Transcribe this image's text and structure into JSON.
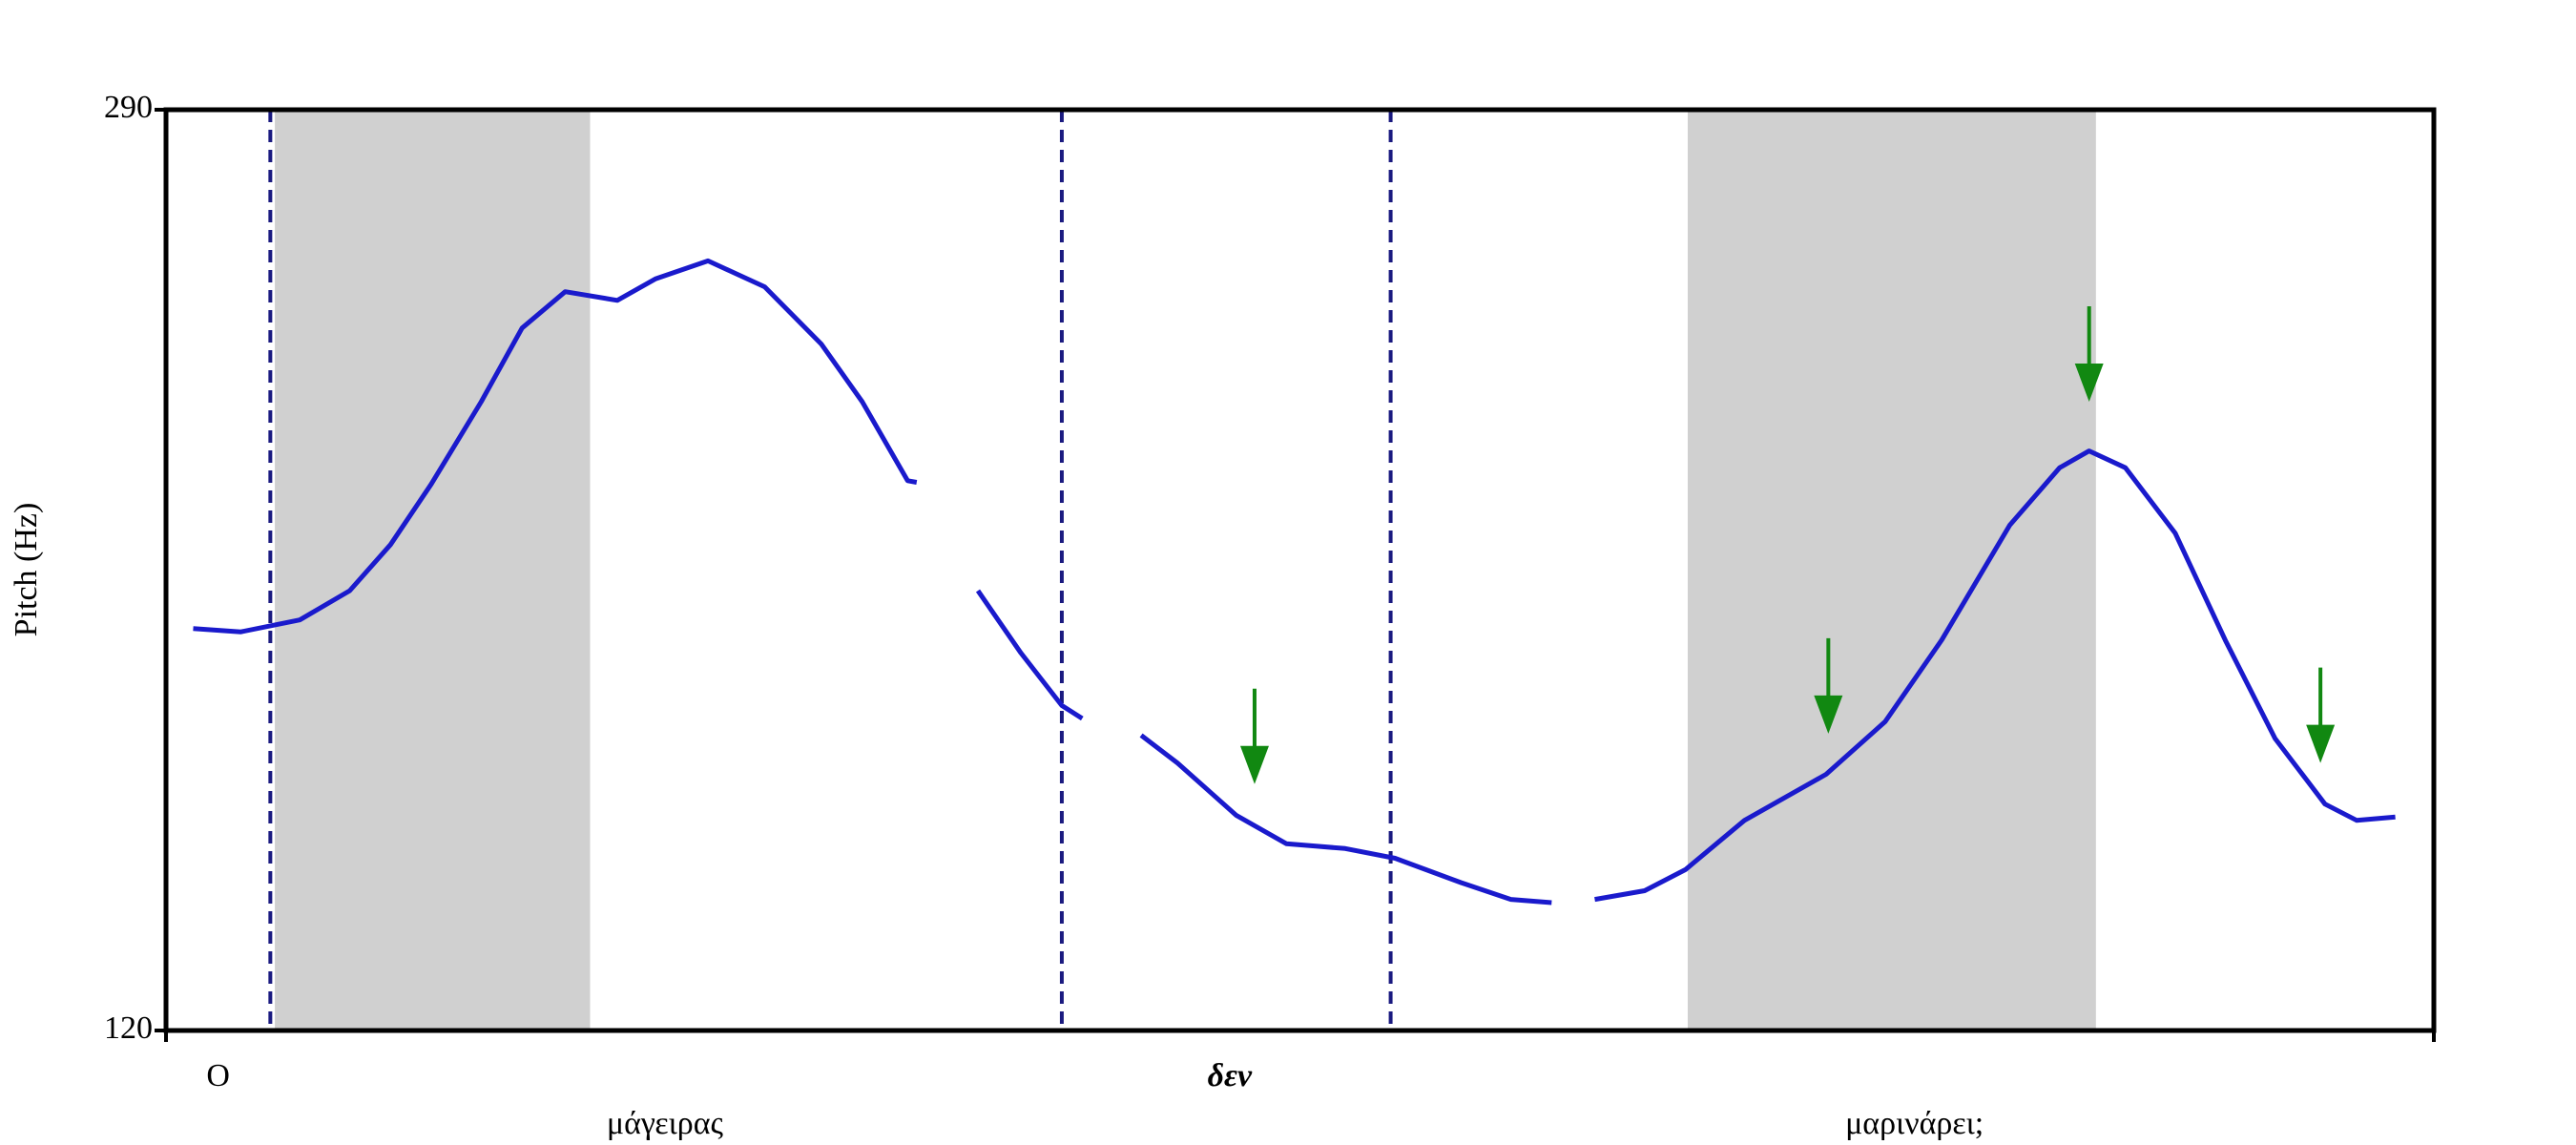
{
  "chart_data": {
    "type": "line",
    "y_label": "Pitch (Hz)",
    "ylim": [
      120,
      290
    ],
    "yticks": [
      120,
      290
    ],
    "xlim": [
      0,
      100
    ],
    "regions": [
      [
        4.8,
        18.7
      ],
      [
        67.1,
        85.1
      ]
    ],
    "boundaries": [
      4.6,
      39.5,
      54.0
    ],
    "words": [
      "O",
      "δεν",
      "μάγειρας",
      "μαρινάρει;"
    ],
    "arrows": {
      "color": "#118811",
      "x": [
        48.0,
        73.3,
        84.8,
        95.0
      ],
      "values": [
        165.5,
        174.8,
        236.1,
        169.4
      ]
    },
    "series": [
      {
        "color": "#1a1acc",
        "x": [
          1.2,
          3.3,
          5.9,
          8.1,
          9.9,
          11.7,
          13.9,
          15.7,
          17.6,
          19.9,
          21.6,
          23.9,
          26.4,
          28.9,
          30.7,
          32.7,
          33.1,
          null,
          35.8,
          37.7,
          39.5,
          40.4,
          null,
          43.0,
          44.6,
          47.2,
          49.4,
          52.0,
          54.2,
          57.1,
          59.3,
          61.1,
          null,
          63.0,
          65.2,
          67.0,
          69.6,
          73.2,
          75.8,
          78.3,
          81.3,
          83.5,
          84.8,
          86.4,
          88.6,
          90.8,
          93.0,
          95.2,
          96.6,
          98.3
        ],
        "values": [
          194.2,
          193.6,
          195.8,
          201.2,
          209.7,
          220.9,
          236.1,
          249.7,
          256.4,
          254.8,
          258.8,
          262.1,
          257.3,
          246.7,
          236.1,
          221.5,
          221.2,
          null,
          201.2,
          189.7,
          180.0,
          177.6,
          null,
          174.5,
          169.4,
          159.7,
          154.5,
          153.6,
          151.8,
          147.3,
          144.2,
          143.6,
          null,
          144.2,
          145.8,
          149.7,
          158.8,
          167.3,
          177.0,
          192.1,
          213.3,
          223.9,
          227.0,
          223.9,
          211.8,
          192.1,
          173.9,
          161.8,
          158.8,
          159.4
        ]
      }
    ]
  }
}
